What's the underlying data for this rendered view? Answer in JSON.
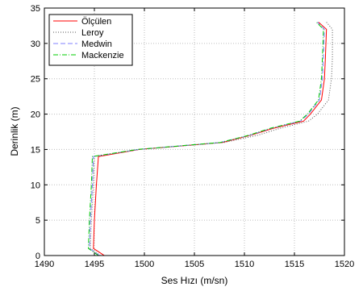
{
  "chart_data": {
    "type": "line",
    "title": "",
    "xlabel": "Ses Hızı (m/sn)",
    "ylabel": "Derinlik (m)",
    "xlim": [
      1490,
      1520
    ],
    "ylim": [
      0,
      35
    ],
    "xticks": [
      1490,
      1495,
      1500,
      1505,
      1510,
      1515,
      1520
    ],
    "yticks": [
      0,
      5,
      10,
      15,
      20,
      25,
      30,
      35
    ],
    "grid": true,
    "legend_position": "top-left",
    "series": [
      {
        "name": "Ölçülen",
        "color": "#ff0000",
        "style": "solid",
        "points": [
          [
            1496.0,
            0
          ],
          [
            1494.9,
            1
          ],
          [
            1495.0,
            5
          ],
          [
            1495.2,
            10
          ],
          [
            1495.4,
            14
          ],
          [
            1499.5,
            15
          ],
          [
            1507.8,
            16
          ],
          [
            1510.6,
            17
          ],
          [
            1512.9,
            18
          ],
          [
            1515.9,
            19
          ],
          [
            1516.6,
            20
          ],
          [
            1517.7,
            22
          ],
          [
            1518.0,
            25
          ],
          [
            1518.1,
            28
          ],
          [
            1518.2,
            32
          ],
          [
            1517.4,
            33
          ]
        ]
      },
      {
        "name": "Leroy",
        "color": "#555555",
        "style": "dotted",
        "points": [
          [
            1495.6,
            0
          ],
          [
            1494.6,
            1
          ],
          [
            1494.7,
            5
          ],
          [
            1494.9,
            10
          ],
          [
            1495.0,
            14
          ],
          [
            1499.5,
            15
          ],
          [
            1508.0,
            16
          ],
          [
            1511.3,
            17
          ],
          [
            1513.6,
            18
          ],
          [
            1516.4,
            19
          ],
          [
            1517.3,
            20
          ],
          [
            1518.4,
            22
          ],
          [
            1518.7,
            25
          ],
          [
            1518.8,
            28
          ],
          [
            1518.8,
            32
          ],
          [
            1518.2,
            33
          ]
        ]
      },
      {
        "name": "Medwin",
        "color": "#8080ff",
        "style": "dashed",
        "points": [
          [
            1495.5,
            0
          ],
          [
            1494.5,
            1
          ],
          [
            1494.6,
            5
          ],
          [
            1494.8,
            10
          ],
          [
            1494.9,
            14
          ],
          [
            1499.4,
            15
          ],
          [
            1507.6,
            16
          ],
          [
            1510.5,
            17
          ],
          [
            1512.7,
            18
          ],
          [
            1515.6,
            19
          ],
          [
            1516.4,
            20
          ],
          [
            1517.5,
            22
          ],
          [
            1517.8,
            25
          ],
          [
            1517.9,
            28
          ],
          [
            1518.0,
            32
          ],
          [
            1517.3,
            33
          ]
        ]
      },
      {
        "name": "Mackenzie",
        "color": "#00cc00",
        "style": "dashdot",
        "points": [
          [
            1495.4,
            0
          ],
          [
            1494.4,
            1
          ],
          [
            1494.5,
            5
          ],
          [
            1494.7,
            10
          ],
          [
            1494.8,
            14
          ],
          [
            1499.3,
            15
          ],
          [
            1507.6,
            16
          ],
          [
            1510.4,
            17
          ],
          [
            1512.6,
            18
          ],
          [
            1515.5,
            19
          ],
          [
            1516.3,
            20
          ],
          [
            1517.4,
            22
          ],
          [
            1517.7,
            25
          ],
          [
            1517.8,
            28
          ],
          [
            1517.9,
            32
          ],
          [
            1517.2,
            33
          ]
        ]
      }
    ]
  }
}
